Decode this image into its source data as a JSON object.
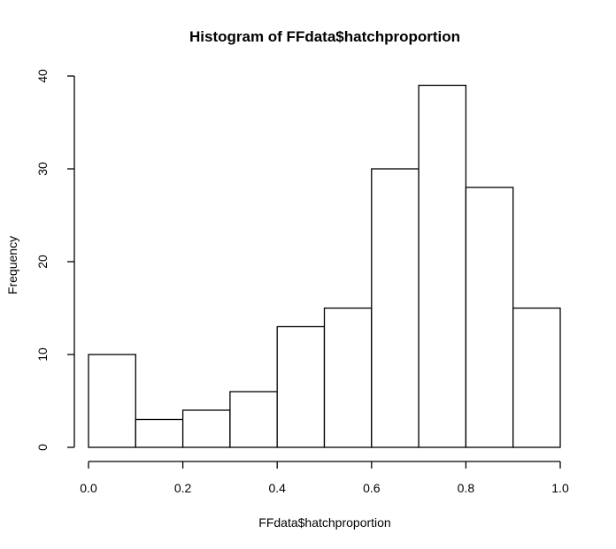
{
  "chart_data": {
    "type": "bar",
    "title": "Histogram of FFdata$hatchproportion",
    "xlabel": "FFdata$hatchproportion",
    "ylabel": "Frequency",
    "bins": [
      {
        "from": 0.0,
        "to": 0.1,
        "count": 10
      },
      {
        "from": 0.1,
        "to": 0.2,
        "count": 3
      },
      {
        "from": 0.2,
        "to": 0.3,
        "count": 4
      },
      {
        "from": 0.3,
        "to": 0.4,
        "count": 6
      },
      {
        "from": 0.4,
        "to": 0.5,
        "count": 13
      },
      {
        "from": 0.5,
        "to": 0.6,
        "count": 15
      },
      {
        "from": 0.6,
        "to": 0.7,
        "count": 30
      },
      {
        "from": 0.7,
        "to": 0.8,
        "count": 39
      },
      {
        "from": 0.8,
        "to": 0.9,
        "count": 28
      },
      {
        "from": 0.9,
        "to": 1.0,
        "count": 15
      }
    ],
    "xlim": [
      0,
      1
    ],
    "ylim": [
      0,
      40
    ],
    "x_ticks": [
      "0.0",
      "0.2",
      "0.4",
      "0.6",
      "0.8",
      "1.0"
    ],
    "y_ticks": [
      "0",
      "10",
      "20",
      "30",
      "40"
    ],
    "grid": false,
    "legend": "none",
    "bar_fill": "#ffffff",
    "bar_stroke": "#000000"
  }
}
